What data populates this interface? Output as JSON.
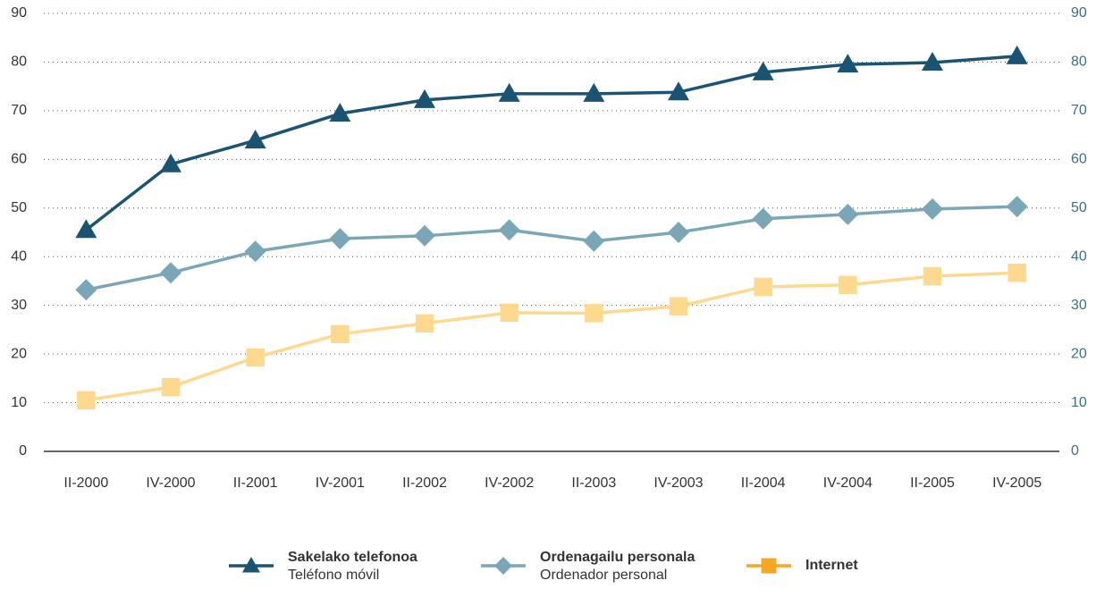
{
  "chart_data": {
    "type": "line",
    "categories": [
      "II-2000",
      "IV-2000",
      "II-2001",
      "IV-2001",
      "II-2002",
      "IV-2002",
      "II-2003",
      "IV-2003",
      "II-2004",
      "IV-2004",
      "II-2005",
      "IV-2005"
    ],
    "series": [
      {
        "name": "Sakelako telefonoa",
        "subname": "Teléfono móvil",
        "color": "#1b5472",
        "legend_color": "#1b5472",
        "marker": "triangle",
        "values": [
          45.5,
          59,
          63.9,
          69.4,
          72.2,
          73.5,
          73.5,
          73.8,
          77.9,
          79.5,
          79.9,
          81.2
        ]
      },
      {
        "name": "Ordenagailu personala",
        "subname": "Ordenador personal",
        "color": "#7ba6b8",
        "legend_color": "#7ba6b8",
        "marker": "diamond",
        "values": [
          33.2,
          36.7,
          41.1,
          43.7,
          44.3,
          45.5,
          43.2,
          45,
          47.8,
          48.7,
          49.8,
          50.3
        ]
      },
      {
        "name": "Internet",
        "color": "#fcd98e",
        "legend_color": "#f5a623",
        "marker": "square",
        "values": [
          10.5,
          13.2,
          19.3,
          24.1,
          26.3,
          28.5,
          28.4,
          29.8,
          33.8,
          34.2,
          36,
          36.7
        ]
      }
    ],
    "ylim": [
      0,
      90
    ],
    "yticks": [
      0,
      10,
      20,
      30,
      40,
      50,
      60,
      70,
      80,
      90
    ],
    "y2lim": [
      0,
      90
    ],
    "y2ticks": [
      0,
      10,
      20,
      30,
      40,
      50,
      60,
      70,
      80,
      90
    ],
    "grid": true
  }
}
